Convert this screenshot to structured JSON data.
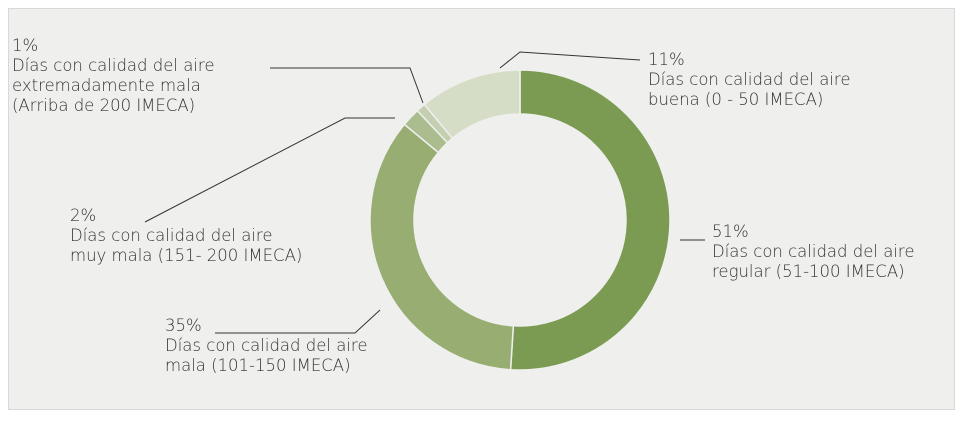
{
  "chart_data": {
    "type": "donut",
    "categories": [
      "Días con calidad del aire\nregular (51-100 IMECA)",
      "Días con calidad del aire\nmala (101-150 IMECA)",
      "Días con calidad del aire\nmuy mala (151- 200 IMECA)",
      "Días con calidad del aire\nextremadamente mala\n(Arriba de 200 IMECA)",
      "Días con calidad del aire\nbuena (0 - 50 IMECA)"
    ],
    "values": [
      51,
      35,
      2,
      1,
      11
    ],
    "value_labels": [
      "51%",
      "35%",
      "2%",
      "1%",
      "11%"
    ],
    "colors": [
      "#7b9b52",
      "#97ad72",
      "#abbd8f",
      "#c3cfaf",
      "#d6ddc7"
    ]
  }
}
